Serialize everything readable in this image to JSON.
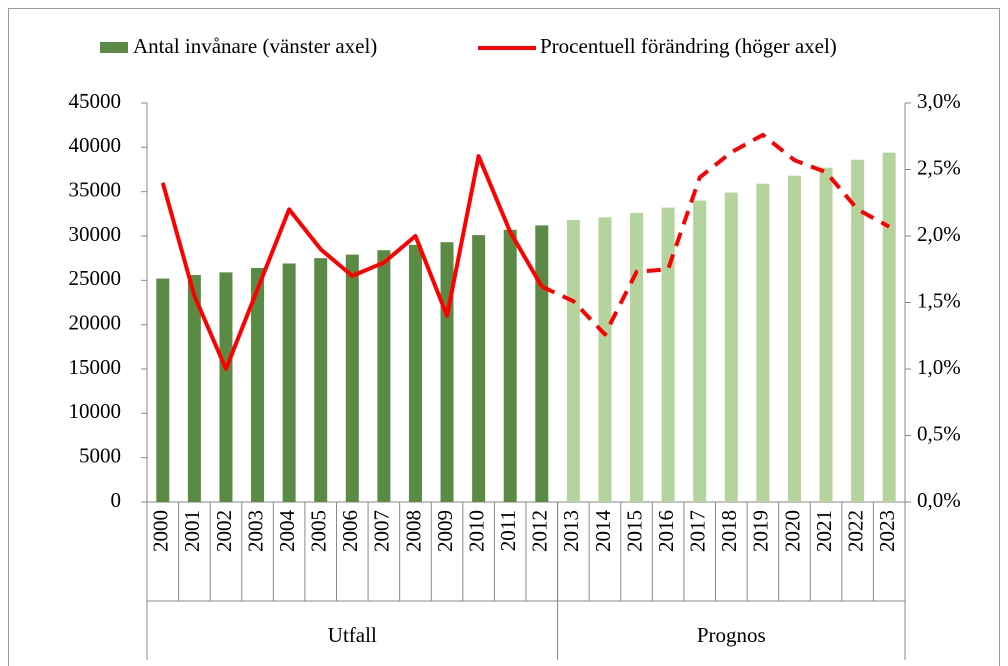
{
  "chart_data": {
    "type": "bar_line",
    "categories": [
      "2000",
      "2001",
      "2002",
      "2003",
      "2004",
      "2005",
      "2006",
      "2007",
      "2008",
      "2009",
      "2010",
      "2011",
      "2012",
      "2013",
      "2014",
      "2015",
      "2016",
      "2017",
      "2018",
      "2019",
      "2020",
      "2021",
      "2022",
      "2023"
    ],
    "groups": [
      {
        "label": "Utfall",
        "from": "2000",
        "to": "2012",
        "bar_color": "#5b8a45",
        "line_style": "solid"
      },
      {
        "label": "Prognos",
        "from": "2013",
        "to": "2023",
        "bar_color": "#b5d39c",
        "line_style": "dashed"
      }
    ],
    "series": [
      {
        "name": "Antal invånare (vänster axel)",
        "type": "bar",
        "color": "#5b8a45",
        "axis": "y",
        "values": [
          25200,
          25600,
          25900,
          26400,
          26900,
          27500,
          27900,
          28400,
          29000,
          29300,
          30100,
          30700,
          31200,
          31800,
          32100,
          32600,
          33200,
          34000,
          34900,
          35900,
          36800,
          37700,
          38600,
          39400
        ]
      },
      {
        "name": "Procentuell förändring (höger axel)",
        "type": "line",
        "color": "#ff0000",
        "axis": "y2",
        "values": [
          2.4,
          1.55,
          1.0,
          1.6,
          2.2,
          1.9,
          1.7,
          1.8,
          2.0,
          1.4,
          2.6,
          2.03,
          1.62,
          1.51,
          1.26,
          1.73,
          1.75,
          2.44,
          2.63,
          2.76,
          2.57,
          2.48,
          2.2,
          2.07
        ]
      }
    ],
    "ylim": [
      0,
      45000
    ],
    "yticks": [
      0,
      5000,
      10000,
      15000,
      20000,
      25000,
      30000,
      35000,
      40000,
      45000
    ],
    "y2lim": [
      0,
      3
    ],
    "y2ticks": [
      {
        "value": 0,
        "label": "0,0%"
      },
      {
        "value": 0.5,
        "label": "0,5%"
      },
      {
        "value": 1,
        "label": "1,0%"
      },
      {
        "value": 1.5,
        "label": "1,5%"
      },
      {
        "value": 2,
        "label": "2,0%"
      },
      {
        "value": 2.5,
        "label": "2,5%"
      },
      {
        "value": 3,
        "label": "3,0%"
      }
    ],
    "legend": "top"
  }
}
